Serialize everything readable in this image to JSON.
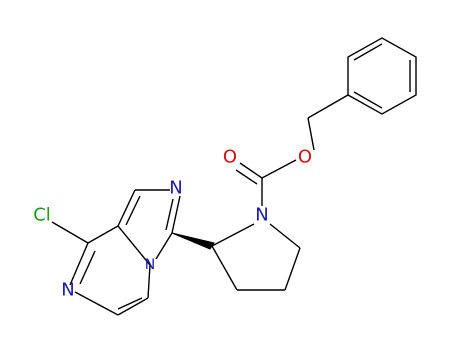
{
  "atoms": {
    "cl": "Cl",
    "n_pyrazine": "N",
    "n_imidazole": "N",
    "n_bridge": "N",
    "n_pyrrolidine": "N",
    "o_carbonyl": "O",
    "o_ester": "O"
  }
}
